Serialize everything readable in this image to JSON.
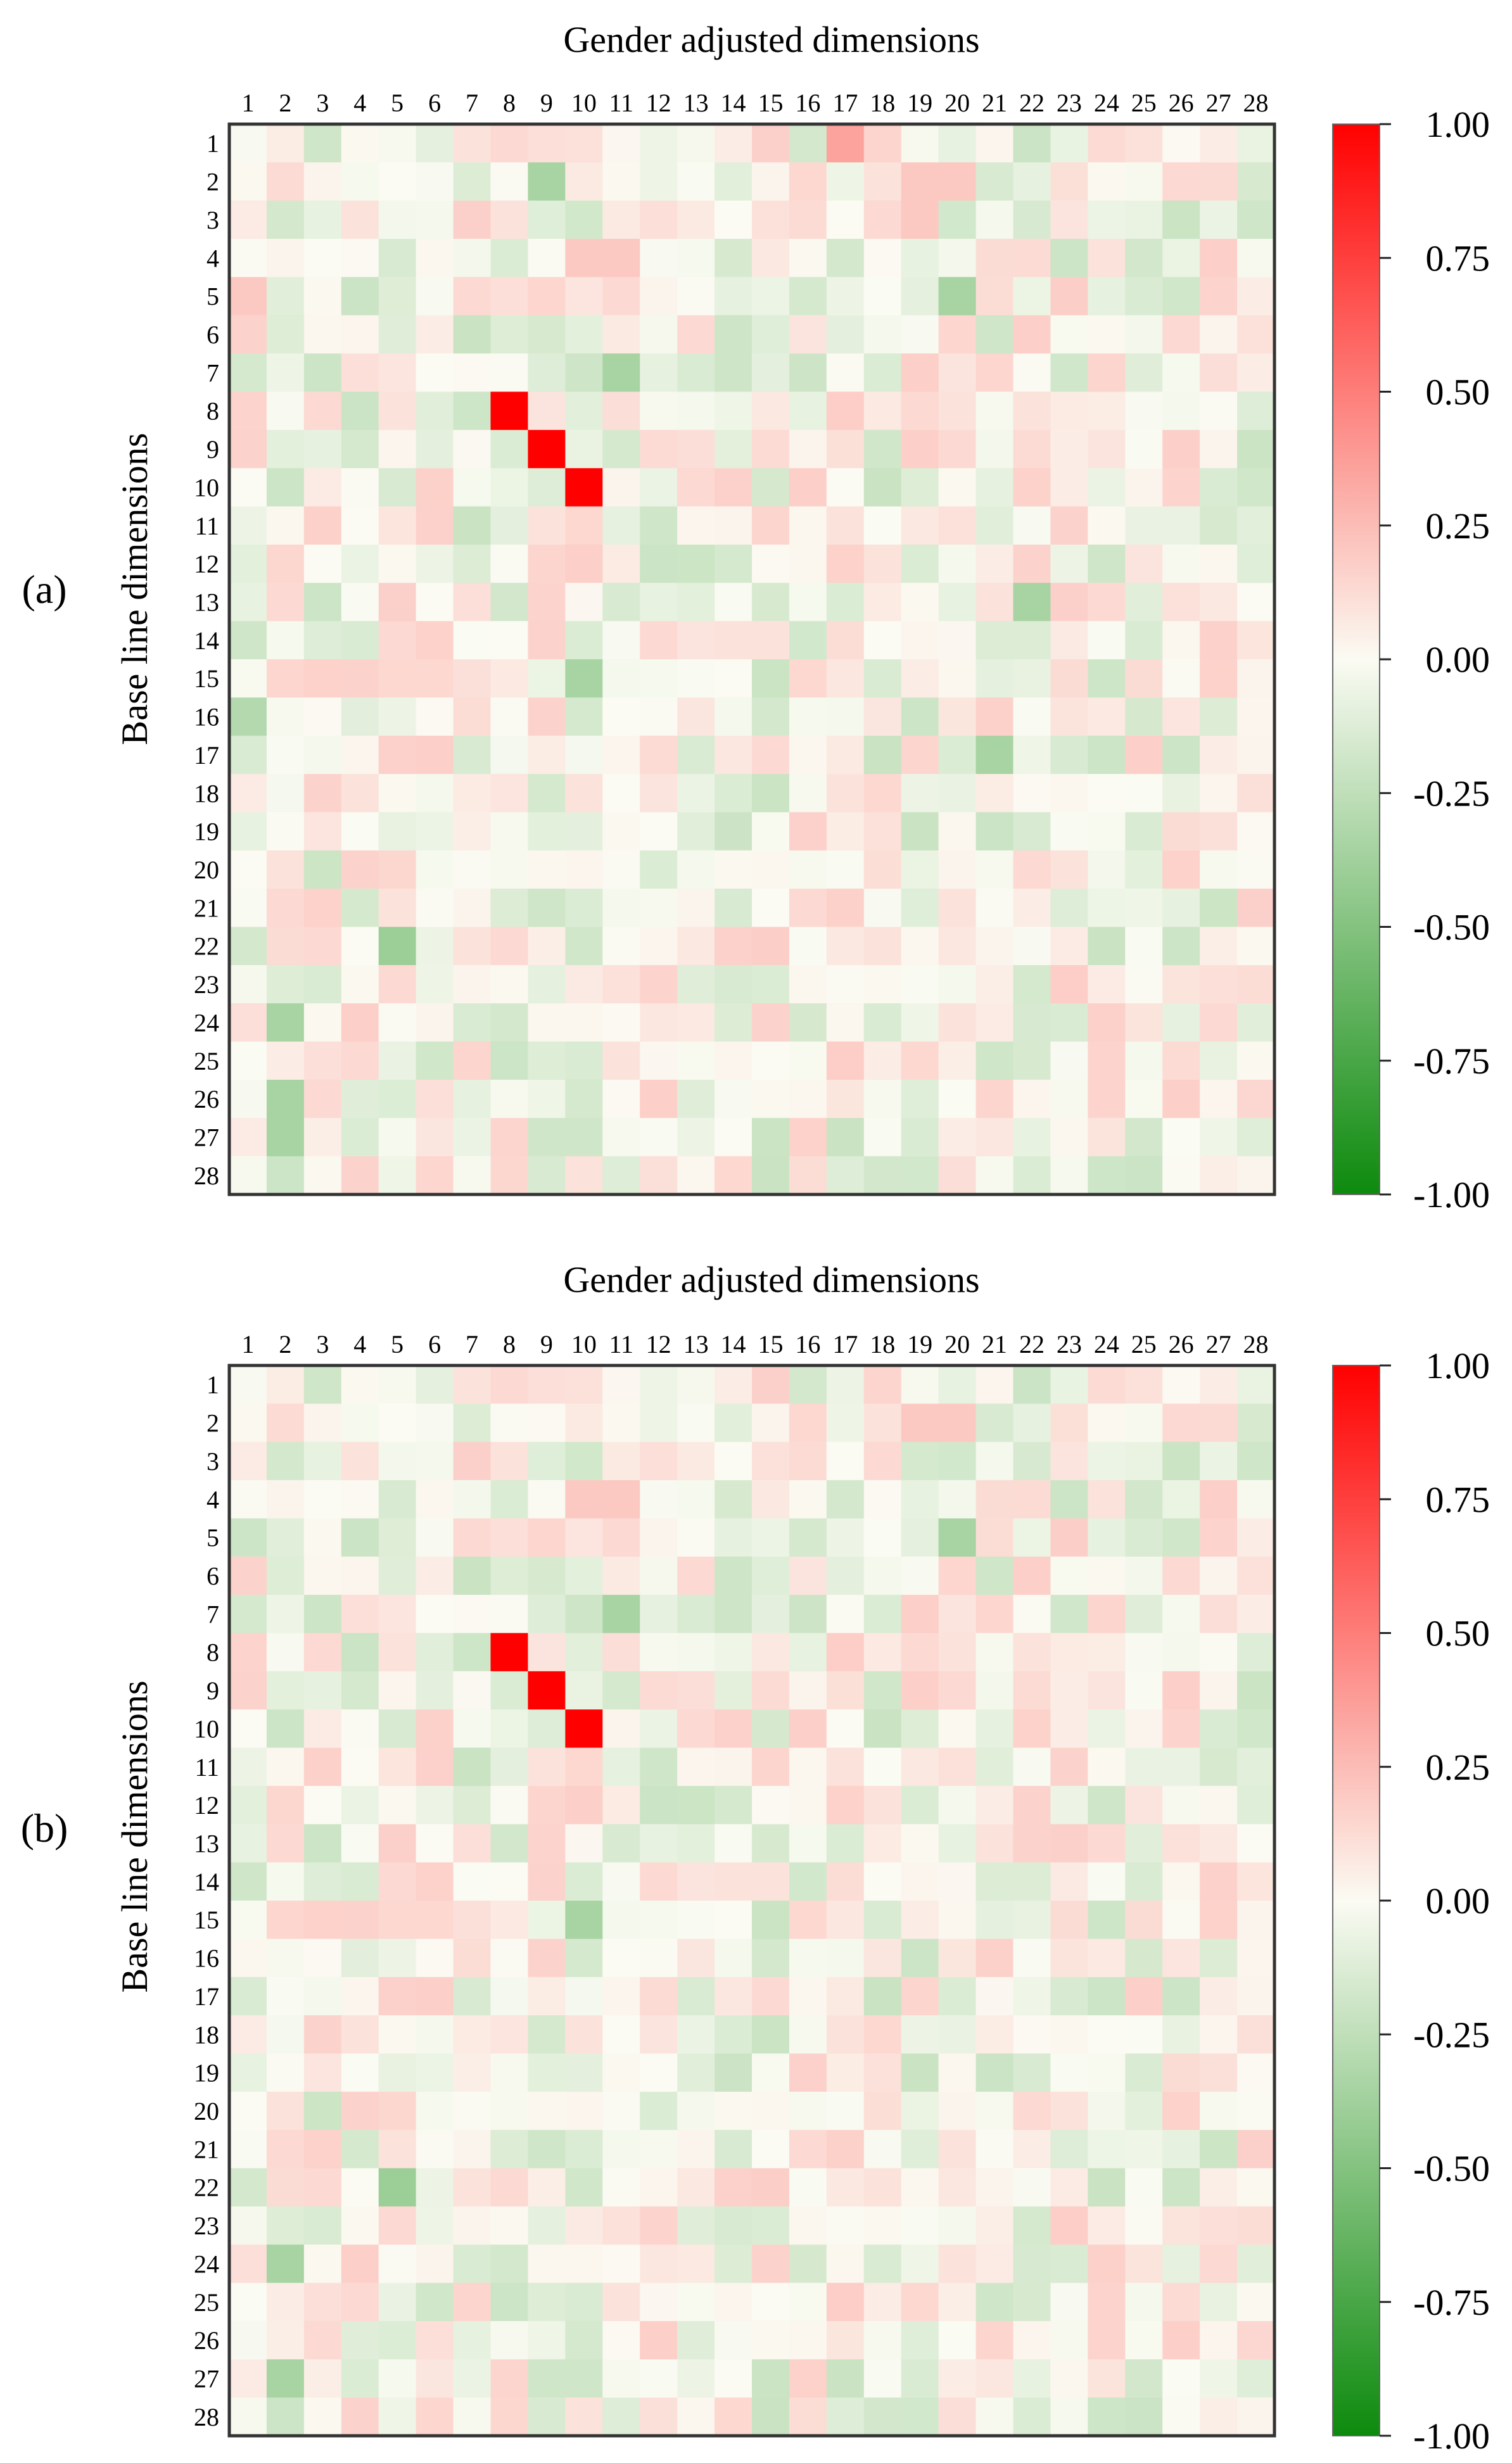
{
  "chart_data": [
    {
      "panel_label": "(a)",
      "type": "heatmap",
      "title": "Gender adjusted dimensions",
      "xlabel": "Gender adjusted dimensions",
      "ylabel": "Base line dimensions",
      "x_categories": [
        "1",
        "2",
        "3",
        "4",
        "5",
        "6",
        "7",
        "8",
        "9",
        "10",
        "11",
        "12",
        "13",
        "14",
        "15",
        "16",
        "17",
        "18",
        "19",
        "20",
        "21",
        "22",
        "23",
        "24",
        "25",
        "26",
        "27",
        "28"
      ],
      "y_categories": [
        "1",
        "2",
        "3",
        "4",
        "5",
        "6",
        "7",
        "8",
        "9",
        "10",
        "11",
        "12",
        "13",
        "14",
        "15",
        "16",
        "17",
        "18",
        "19",
        "20",
        "21",
        "22",
        "23",
        "24",
        "25",
        "26",
        "27",
        "28"
      ],
      "colorbar": {
        "min": -1.0,
        "max": 1.0,
        "tick_values": [
          1.0,
          0.75,
          0.5,
          0.25,
          0.0,
          -0.25,
          -0.5,
          -0.75,
          -1.0
        ],
        "tick_labels": [
          "1.00",
          "0.75",
          "0.50",
          "0.25",
          "0.00",
          "-0.25",
          "-0.50",
          "-0.75",
          "-1.00"
        ],
        "colors": {
          "low": "#0d8a0d",
          "mid": "#fbfbf3",
          "high": "#ff0000"
        }
      },
      "seed": 11,
      "highlighted_cells": [
        {
          "row": 8,
          "col": 8,
          "value": 1.0
        },
        {
          "row": 9,
          "col": 9,
          "value": 1.0
        },
        {
          "row": 10,
          "col": 10,
          "value": 1.0
        },
        {
          "row": 1,
          "col": 17,
          "value": 0.35
        },
        {
          "row": 2,
          "col": 9,
          "value": -0.35
        },
        {
          "row": 5,
          "col": 20,
          "value": -0.35
        },
        {
          "row": 7,
          "col": 11,
          "value": -0.35
        },
        {
          "row": 13,
          "col": 22,
          "value": -0.35
        },
        {
          "row": 15,
          "col": 10,
          "value": -0.35
        },
        {
          "row": 16,
          "col": 1,
          "value": -0.3
        },
        {
          "row": 17,
          "col": 21,
          "value": -0.35
        },
        {
          "row": 22,
          "col": 5,
          "value": -0.4
        },
        {
          "row": 24,
          "col": 2,
          "value": -0.35
        },
        {
          "row": 26,
          "col": 2,
          "value": -0.35
        },
        {
          "row": 27,
          "col": 2,
          "value": -0.35
        },
        {
          "row": 2,
          "col": 19,
          "value": 0.2
        },
        {
          "row": 2,
          "col": 20,
          "value": 0.2
        },
        {
          "row": 3,
          "col": 19,
          "value": 0.2
        },
        {
          "row": 4,
          "col": 10,
          "value": 0.2
        },
        {
          "row": 4,
          "col": 11,
          "value": 0.2
        },
        {
          "row": 5,
          "col": 1,
          "value": 0.2
        }
      ]
    },
    {
      "panel_label": "(b)",
      "type": "heatmap",
      "title": "Gender adjusted dimensions",
      "xlabel": "Gender adjusted dimensions",
      "ylabel": "Base line dimensions",
      "x_categories": [
        "1",
        "2",
        "3",
        "4",
        "5",
        "6",
        "7",
        "8",
        "9",
        "10",
        "11",
        "12",
        "13",
        "14",
        "15",
        "16",
        "17",
        "18",
        "19",
        "20",
        "21",
        "22",
        "23",
        "24",
        "25",
        "26",
        "27",
        "28"
      ],
      "y_categories": [
        "1",
        "2",
        "3",
        "4",
        "5",
        "6",
        "7",
        "8",
        "9",
        "10",
        "11",
        "12",
        "13",
        "14",
        "15",
        "16",
        "17",
        "18",
        "19",
        "20",
        "21",
        "22",
        "23",
        "24",
        "25",
        "26",
        "27",
        "28"
      ],
      "colorbar": {
        "min": -1.0,
        "max": 1.0,
        "tick_values": [
          1.0,
          0.75,
          0.5,
          0.25,
          0.0,
          -0.25,
          -0.5,
          -0.75,
          -1.0
        ],
        "tick_labels": [
          "1.00",
          "0.75",
          "0.50",
          "0.25",
          "0.00",
          "-0.25",
          "-0.50",
          "-0.75",
          "-1.00"
        ],
        "colors": {
          "low": "#0d8a0d",
          "mid": "#fbfbf3",
          "high": "#ff0000"
        }
      },
      "seed": 11,
      "highlighted_cells": [
        {
          "row": 8,
          "col": 8,
          "value": 1.0
        },
        {
          "row": 9,
          "col": 9,
          "value": 1.0
        },
        {
          "row": 10,
          "col": 10,
          "value": 1.0
        },
        {
          "row": 5,
          "col": 20,
          "value": -0.35
        },
        {
          "row": 7,
          "col": 11,
          "value": -0.35
        },
        {
          "row": 15,
          "col": 10,
          "value": -0.35
        },
        {
          "row": 22,
          "col": 5,
          "value": -0.4
        },
        {
          "row": 24,
          "col": 2,
          "value": -0.35
        },
        {
          "row": 27,
          "col": 2,
          "value": -0.35
        },
        {
          "row": 2,
          "col": 19,
          "value": 0.2
        },
        {
          "row": 2,
          "col": 20,
          "value": 0.2
        },
        {
          "row": 4,
          "col": 10,
          "value": 0.2
        },
        {
          "row": 4,
          "col": 11,
          "value": 0.2
        }
      ]
    }
  ]
}
